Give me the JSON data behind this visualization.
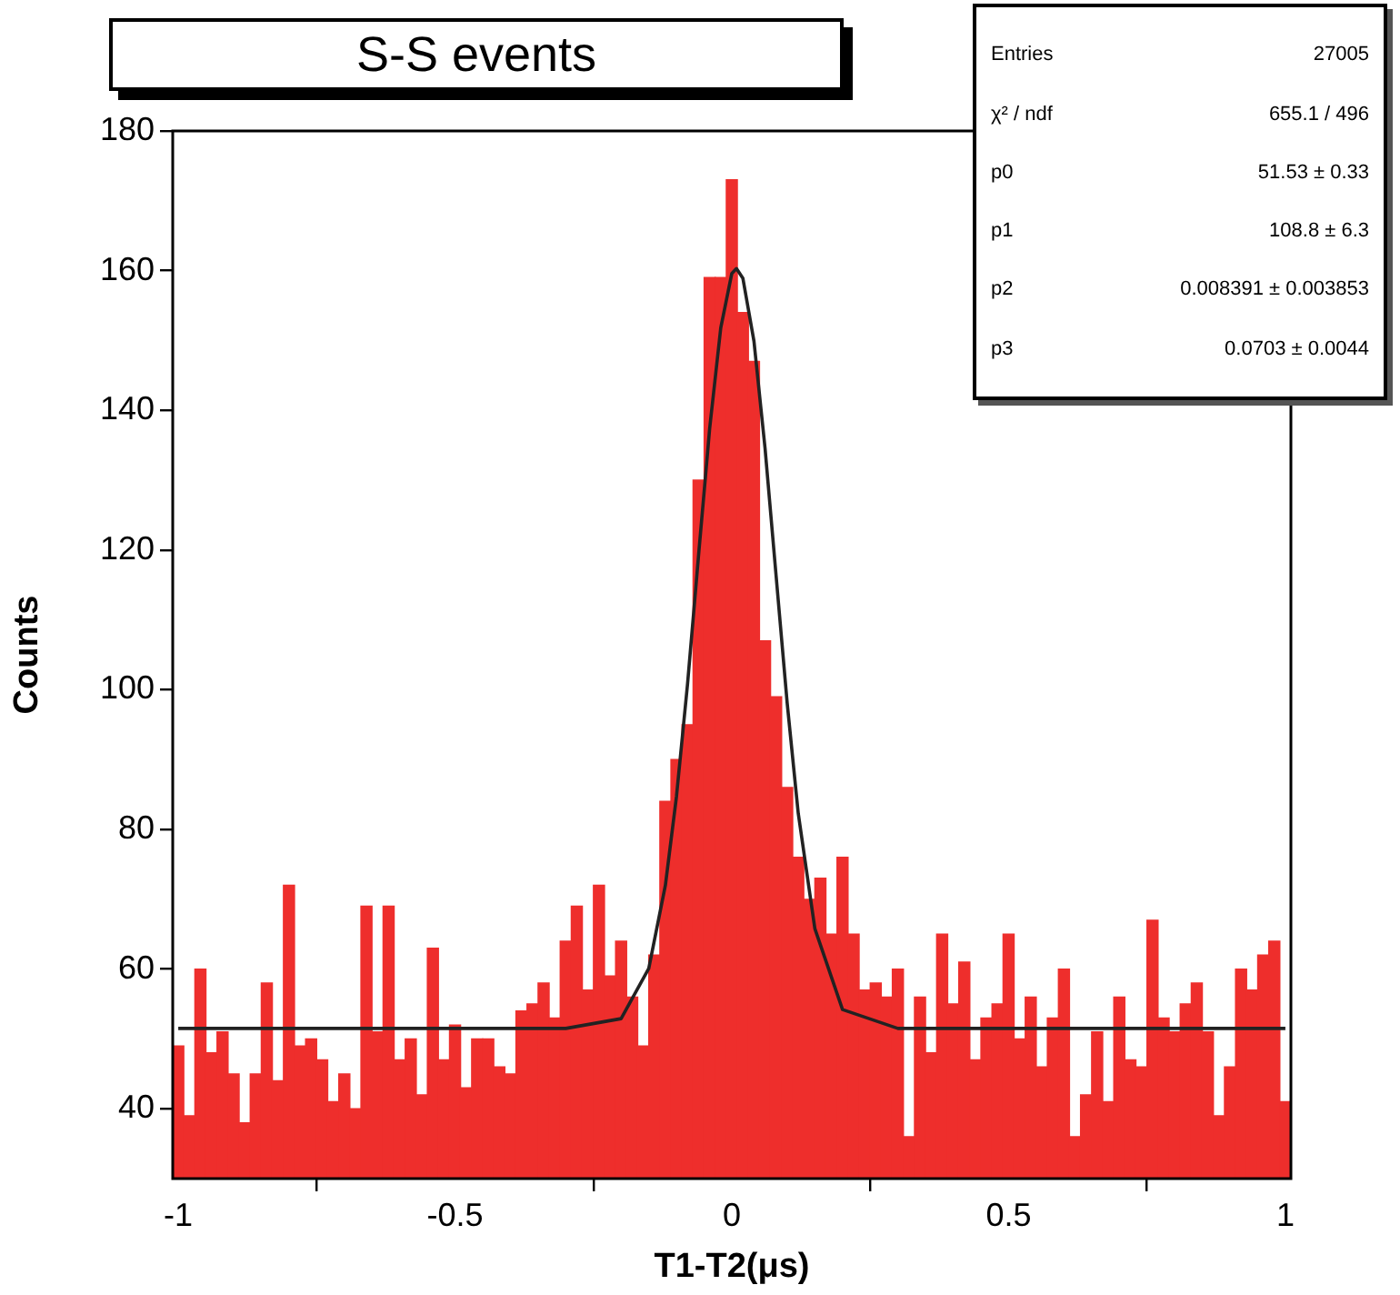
{
  "chart_data": {
    "type": "histogram",
    "title": "S-S events",
    "xlabel": "T1-T2(μs)",
    "ylabel": "Counts",
    "bins": [
      -1.01,
      -0.99,
      -0.97,
      -0.95,
      -0.93,
      -0.91,
      -0.89,
      -0.87,
      -0.85,
      -0.83,
      -0.81,
      -0.79,
      -0.77,
      -0.75,
      -0.73,
      -0.71,
      -0.69,
      -0.67,
      -0.65,
      -0.63,
      -0.61,
      -0.59,
      -0.57,
      -0.55,
      -0.53,
      -0.51,
      -0.49,
      -0.47,
      -0.45,
      -0.43,
      -0.41,
      -0.39,
      -0.37,
      -0.35,
      -0.33,
      -0.31,
      -0.29,
      -0.27,
      -0.25,
      -0.23,
      -0.21,
      -0.19,
      -0.17,
      -0.15,
      -0.13,
      -0.11,
      -0.09,
      -0.07,
      -0.05,
      -0.03,
      -0.01,
      0.01,
      0.03,
      0.05,
      0.07,
      0.09,
      0.11,
      0.13,
      0.15,
      0.17,
      0.19,
      0.21,
      0.23,
      0.25,
      0.27,
      0.29,
      0.31,
      0.33,
      0.35,
      0.37,
      0.39,
      0.41,
      0.43,
      0.45,
      0.47,
      0.49,
      0.51,
      0.53,
      0.55,
      0.57,
      0.59,
      0.61,
      0.63,
      0.65,
      0.67,
      0.69,
      0.71,
      0.73,
      0.75,
      0.77,
      0.79,
      0.81,
      0.83,
      0.85,
      0.87,
      0.89,
      0.91,
      0.93,
      0.95,
      0.97,
      0.99,
      1.01
    ],
    "series": [
      {
        "type": "histogram",
        "color": "#ee2e2c",
        "values": [
          49,
          39,
          60,
          48,
          51,
          45,
          38,
          45,
          58,
          44,
          72,
          49,
          50,
          47,
          41,
          45,
          40,
          69,
          51,
          69,
          47,
          50,
          42,
          63,
          47,
          52,
          43,
          50,
          50,
          46,
          45,
          54,
          55,
          58,
          53,
          64,
          69,
          57,
          72,
          59,
          64,
          56,
          49,
          62,
          84,
          90,
          95,
          130,
          159,
          159,
          173,
          154,
          147,
          107,
          99,
          86,
          76,
          70,
          73,
          65,
          76,
          65,
          57,
          58,
          56,
          60,
          36,
          56,
          48,
          65,
          55,
          61,
          47,
          53,
          55,
          65,
          50,
          56,
          46,
          53,
          60,
          36,
          42,
          51,
          41,
          56,
          47,
          46,
          67,
          53,
          51,
          55,
          58,
          51,
          39,
          46,
          60,
          57,
          62,
          64,
          41
        ]
      },
      {
        "type": "line",
        "color": "#222222",
        "x": [
          -1,
          -0.3,
          -0.2,
          -0.15,
          -0.12,
          -0.1,
          -0.08,
          -0.06,
          -0.04,
          -0.02,
          0,
          0.0084,
          0.02,
          0.04,
          0.06,
          0.08,
          0.1,
          0.12,
          0.15,
          0.2,
          0.3,
          1
        ],
        "values": [
          51.5,
          51.5,
          52.9,
          60.1,
          72.0,
          84.7,
          100.8,
          119.3,
          137.4,
          151.8,
          159.6,
          160.3,
          158.9,
          149.9,
          134.6,
          116.3,
          98.1,
          82.3,
          65.8,
          54.2,
          51.5,
          51.5
        ]
      }
    ],
    "xlim": [
      -1.01,
      1.01
    ],
    "xticks": [
      -1,
      -0.5,
      0,
      0.5,
      1
    ],
    "ylim": [
      30,
      180
    ],
    "yticks": [
      40,
      60,
      80,
      100,
      120,
      140,
      160,
      180
    ],
    "grid": false,
    "legend": false,
    "annotations": [
      "Entries",
      "27005",
      "χ² / ndf",
      "655.1 / 496",
      "p0",
      "51.53 ± 0.33",
      "p1",
      "108.8 ± 6.3",
      "p2",
      "0.008391 ± 0.003853",
      "p3",
      "0.0703 ± 0.0044"
    ]
  }
}
